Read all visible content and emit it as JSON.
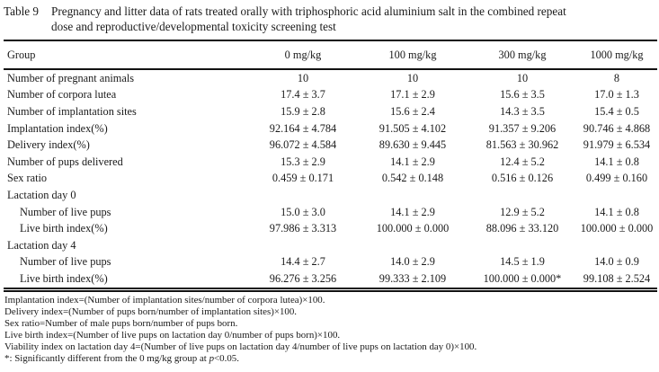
{
  "title": {
    "label": "Table 9",
    "caption": "Pregnancy and litter data of rats treated orally with triphosphoric acid aluminium salt in the combined repeat dose and reproductive/developmental toxicity screening test"
  },
  "table": {
    "columns": [
      "Group",
      "0 mg/kg",
      "100 mg/kg",
      "300 mg/kg",
      "1000 mg/kg"
    ],
    "rows": [
      {
        "label": "Number of pregnant animals",
        "values": [
          "10",
          "10",
          "10",
          "8"
        ]
      },
      {
        "label": "Number of corpora lutea",
        "values": [
          "17.4 ± 3.7",
          "17.1 ± 2.9",
          "15.6 ± 3.5",
          "17.0 ± 1.3"
        ]
      },
      {
        "label": "Number of implantation sites",
        "values": [
          "15.9 ± 2.8",
          "15.6 ± 2.4",
          "14.3 ± 3.5",
          "15.4 ± 0.5"
        ]
      },
      {
        "label": "Implantation index(%)",
        "values": [
          "92.164 ± 4.784",
          "91.505 ± 4.102",
          "91.357 ± 9.206",
          "90.746 ± 4.868"
        ]
      },
      {
        "label": "Delivery index(%)",
        "values": [
          "96.072 ± 4.584",
          "89.630 ± 9.445",
          "81.563 ± 30.962",
          "91.979 ± 6.534"
        ]
      },
      {
        "label": "Number of pups delivered",
        "values": [
          "15.3 ± 2.9",
          "14.1 ± 2.9",
          "12.4 ± 5.2",
          "14.1 ± 0.8"
        ]
      },
      {
        "label": "Sex ratio",
        "values": [
          "0.459 ± 0.171",
          "0.542 ± 0.148",
          "0.516 ± 0.126",
          "0.499 ± 0.160"
        ]
      },
      {
        "label": "Lactation day 0",
        "values": [
          "",
          "",
          "",
          ""
        ]
      },
      {
        "label": "Number of live pups",
        "values": [
          "15.0 ± 3.0",
          "14.1 ± 2.9",
          "12.9 ± 5.2",
          "14.1 ± 0.8"
        ]
      },
      {
        "label": "Live birth index(%)",
        "values": [
          "97.986 ± 3.313",
          "100.000 ± 0.000",
          "88.096 ± 33.120",
          "100.000 ± 0.000"
        ]
      },
      {
        "label": "Lactation day 4",
        "values": [
          "",
          "",
          "",
          ""
        ]
      },
      {
        "label": "Number of live pups",
        "values": [
          "14.4 ± 2.7",
          "14.0 ± 2.9",
          "14.5 ± 1.9",
          "14.0 ± 0.9"
        ]
      },
      {
        "label": "Live birth index(%)",
        "values": [
          "96.276 ± 3.256",
          "99.333 ± 2.109",
          "100.000 ± 0.000*",
          "99.108 ± 2.524"
        ]
      }
    ]
  },
  "footnotes": {
    "lines": [
      "Implantation index=(Number of implantation sites/number of corpora lutea)×100.",
      "Delivery index=(Number of pups born/number of implantation sites)×100.",
      "Sex ratio=Number of male pups born/number of pups born.",
      "Live birth index=(Number of live pups on lactation day 0/number of pups born)×100.",
      "Viability index on lactation day 4=(Number of live pups on lactation day 4/number of live pups on lactation day 0)×100."
    ],
    "significance": {
      "prefix": "*: Significantly different from the 0 mg/kg group at ",
      "italic": "p",
      "suffix": "<0.05."
    }
  }
}
